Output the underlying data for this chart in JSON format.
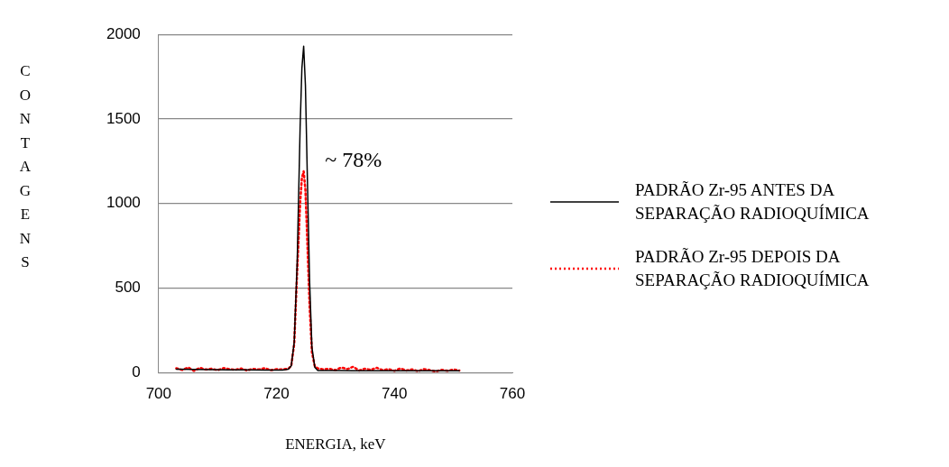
{
  "chart_data": {
    "type": "line",
    "xlabel": "ENERGIA, keV",
    "ylabel": "CONTAGENS",
    "xlim": [
      700,
      760
    ],
    "xticks": [
      700,
      720,
      740,
      760
    ],
    "ylim": [
      0,
      2000
    ],
    "yticks": [
      0,
      500,
      1000,
      1500,
      2000
    ],
    "grid": "y",
    "legend": "right",
    "marker": "none",
    "annotations": [
      "~ 78%"
    ],
    "series": [
      {
        "name": "PADRÃO Zr-95 ANTES DA SEPARAÇÃO RADIOQUÍMICA",
        "color": "#000000",
        "line_style": "solid",
        "x": [
          703,
          706,
          709,
          712,
          715,
          718,
          720,
          721,
          722,
          722.5,
          723,
          723.5,
          724,
          724.3,
          724.6,
          724.9,
          725.2,
          725.6,
          726,
          726.5,
          727,
          730,
          733,
          736,
          739,
          742,
          745,
          748,
          751
        ],
        "values": [
          20,
          18,
          17,
          16,
          16,
          15,
          15,
          15,
          20,
          40,
          180,
          650,
          1450,
          1800,
          1930,
          1700,
          1200,
          550,
          150,
          30,
          12,
          12,
          11,
          11,
          10,
          10,
          10,
          10,
          10
        ]
      },
      {
        "name": "PADRÃO Zr-95 DEPOIS DA SEPARAÇÃO RADIOQUÍMICA",
        "color": "#ff0000",
        "line_style": "dotted",
        "x": [
          703,
          704,
          705,
          706,
          707,
          708,
          709,
          710,
          711,
          712,
          713,
          714,
          715,
          716,
          717,
          718,
          719,
          720,
          721,
          722,
          722.5,
          723,
          723.5,
          724,
          724.3,
          724.6,
          724.9,
          725.2,
          725.6,
          726,
          726.5,
          727,
          728,
          729,
          730,
          731,
          732,
          733,
          734,
          735,
          736,
          737,
          738,
          739,
          740,
          741,
          742,
          743,
          744,
          745,
          746,
          747,
          748,
          749,
          750,
          751
        ],
        "values": [
          25,
          15,
          30,
          10,
          28,
          18,
          22,
          14,
          26,
          20,
          16,
          24,
          12,
          22,
          18,
          26,
          14,
          20,
          18,
          22,
          40,
          170,
          600,
          1000,
          1150,
          1190,
          1080,
          800,
          400,
          120,
          35,
          25,
          18,
          22,
          14,
          30,
          20,
          34,
          12,
          22,
          16,
          28,
          14,
          20,
          10,
          24,
          12,
          18,
          8,
          20,
          14,
          6,
          16,
          10,
          18,
          12
        ]
      }
    ]
  }
}
